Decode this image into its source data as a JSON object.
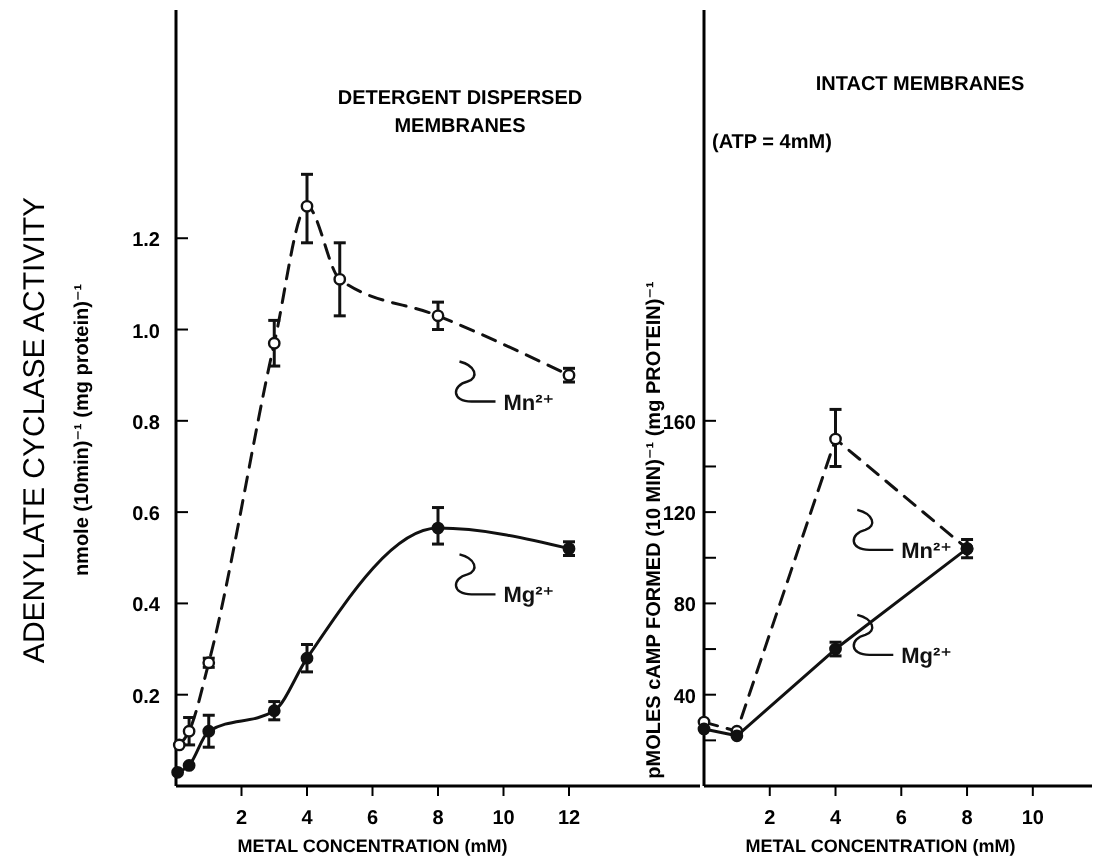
{
  "chart_data": [
    {
      "type": "line",
      "title": "DETERGENT DISPERSED MEMBRANES",
      "ylabel": "ADENYLATE CYCLASE ACTIVITY\nnmole (10min)⁻¹ (mg protein)⁻¹",
      "xlabel": "METAL CONCENTRATION (mM)",
      "xlim": [
        0,
        16
      ],
      "ylim": [
        0,
        1.7
      ],
      "xticks": [
        2,
        4,
        6,
        8,
        10,
        12
      ],
      "yticks": [
        0.2,
        0.4,
        0.6,
        0.8,
        {
          "value": 1,
          "label": "1.0"
        },
        1.2
      ],
      "marker": "circle",
      "series": [
        {
          "name": "Mn²⁺",
          "color": "#111111",
          "line_style": "dashed",
          "x": [
            0.1,
            0.4,
            1,
            3,
            4,
            5,
            8,
            12
          ],
          "values": [
            0.09,
            0.12,
            0.27,
            0.97,
            1.27,
            1.11,
            1.03,
            0.9
          ],
          "errors": [
            null,
            0.03,
            0.01,
            [
              0.92,
              1.02
            ],
            [
              1.19,
              1.34
            ],
            [
              1.03,
              1.19
            ],
            [
              1.0,
              1.06
            ],
            0.015
          ]
        },
        {
          "name": "Mg²⁺",
          "color": "#111111",
          "line_style": "solid",
          "x": [
            0.05,
            0.4,
            1,
            3,
            4,
            8,
            12
          ],
          "values": [
            0.03,
            0.045,
            0.12,
            0.165,
            0.28,
            0.565,
            0.52
          ],
          "errors": [
            null,
            null,
            0.035,
            0.02,
            0.03,
            [
              0.53,
              0.61
            ],
            0.015
          ]
        }
      ]
    },
    {
      "type": "line",
      "title": "INTACT MEMBRANES",
      "ylabel": "pMOLES cAMP FORMED (10 MIN)⁻¹ (mg PROTEIN)⁻¹",
      "xlabel": "METAL CONCENTRATION (mM)",
      "annotations": [
        "(ATP = 4mM)"
      ],
      "xlim": [
        0,
        11.8
      ],
      "ylim": [
        0,
        340
      ],
      "xticks": [
        2,
        4,
        6,
        8,
        10
      ],
      "yticks": [
        {
          "value": 20,
          "label": null
        },
        40,
        {
          "value": 60,
          "label": null
        },
        80,
        {
          "value": 100,
          "label": null
        },
        120,
        {
          "value": 140,
          "label": null
        },
        160
      ],
      "marker": "circle",
      "series": [
        {
          "name": "Mn²⁺",
          "color": "#111111",
          "line_style": "dashed",
          "x": [
            0,
            1,
            4,
            8
          ],
          "values": [
            28,
            24,
            152,
            104
          ],
          "errors": [
            null,
            null,
            [
              140,
              165
            ],
            null
          ]
        },
        {
          "name": "Mg²⁺",
          "color": "#111111",
          "line_style": "solid",
          "x": [
            0,
            1,
            4,
            8
          ],
          "values": [
            25,
            22,
            60,
            104
          ],
          "errors": [
            null,
            null,
            3,
            4
          ]
        }
      ]
    }
  ]
}
